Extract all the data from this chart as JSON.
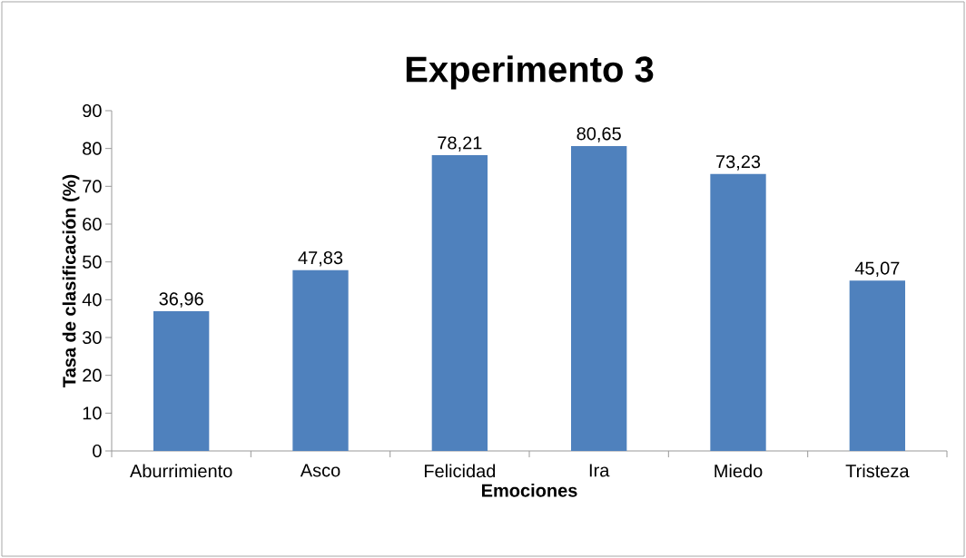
{
  "chart_data": {
    "type": "bar",
    "title": "Experimento 3",
    "xlabel": "Emociones",
    "ylabel": "Tasa de clasificación (%)",
    "categories": [
      "Aburrimiento",
      "Asco",
      "Felicidad",
      "Ira",
      "Miedo",
      "Tristeza"
    ],
    "values": [
      36.96,
      47.83,
      78.21,
      80.65,
      73.23,
      45.07
    ],
    "value_labels": [
      "36,96",
      "47,83",
      "78,21",
      "80,65",
      "73,23",
      "45,07"
    ],
    "color": "#4f81bd",
    "ylim": [
      0,
      90
    ],
    "yticks": [
      0,
      10,
      20,
      30,
      40,
      50,
      60,
      70,
      80,
      90
    ]
  }
}
